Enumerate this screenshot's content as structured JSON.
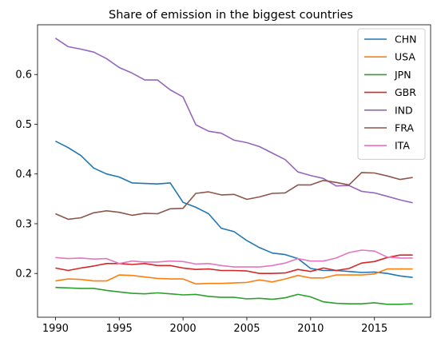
{
  "chart_data": {
    "type": "line",
    "title": "Share of emission in the biggest countries",
    "xlabel": "",
    "ylabel": "",
    "xlim": [
      1988.6,
      2019.4
    ],
    "ylim": [
      0.112,
      0.7
    ],
    "xticks": [
      1990,
      1995,
      2000,
      2005,
      2010,
      2015
    ],
    "yticks": [
      0.2,
      0.3,
      0.4,
      0.5,
      0.6
    ],
    "grid": false,
    "legend_position": "top-right",
    "x": [
      1990,
      1991,
      1992,
      1993,
      1994,
      1995,
      1996,
      1997,
      1998,
      1999,
      2000,
      2001,
      2002,
      2003,
      2004,
      2005,
      2006,
      2007,
      2008,
      2009,
      2010,
      2011,
      2012,
      2013,
      2014,
      2015,
      2016,
      2017,
      2018
    ],
    "series": [
      {
        "name": "CHN",
        "color": "#1f77b4",
        "values": [
          0.466,
          0.453,
          0.437,
          0.412,
          0.4,
          0.394,
          0.382,
          0.381,
          0.38,
          0.382,
          0.343,
          0.333,
          0.32,
          0.291,
          0.284,
          0.266,
          0.252,
          0.241,
          0.238,
          0.23,
          0.21,
          0.206,
          0.206,
          0.204,
          0.202,
          0.203,
          0.2,
          0.195,
          0.192
        ]
      },
      {
        "name": "USA",
        "color": "#ff7f0e",
        "values": [
          0.185,
          0.189,
          0.188,
          0.185,
          0.185,
          0.197,
          0.196,
          0.193,
          0.19,
          0.189,
          0.189,
          0.179,
          0.18,
          0.18,
          0.181,
          0.182,
          0.187,
          0.183,
          0.189,
          0.196,
          0.191,
          0.191,
          0.197,
          0.197,
          0.197,
          0.199,
          0.209,
          0.209,
          0.209
        ]
      },
      {
        "name": "JPN",
        "color": "#2ca02c",
        "values": [
          0.172,
          0.171,
          0.17,
          0.17,
          0.166,
          0.163,
          0.16,
          0.159,
          0.161,
          0.159,
          0.157,
          0.158,
          0.154,
          0.152,
          0.152,
          0.149,
          0.15,
          0.148,
          0.151,
          0.158,
          0.153,
          0.143,
          0.14,
          0.139,
          0.139,
          0.141,
          0.138,
          0.138,
          0.139
        ]
      },
      {
        "name": "GBR",
        "color": "#d62728",
        "values": [
          0.211,
          0.206,
          0.211,
          0.215,
          0.22,
          0.22,
          0.218,
          0.22,
          0.216,
          0.216,
          0.211,
          0.208,
          0.209,
          0.206,
          0.206,
          0.205,
          0.2,
          0.2,
          0.201,
          0.208,
          0.204,
          0.211,
          0.206,
          0.21,
          0.221,
          0.224,
          0.232,
          0.237,
          0.237
        ]
      },
      {
        "name": "IND",
        "color": "#9467bd",
        "values": [
          0.673,
          0.656,
          0.651,
          0.645,
          0.632,
          0.614,
          0.603,
          0.589,
          0.589,
          0.569,
          0.555,
          0.499,
          0.486,
          0.482,
          0.468,
          0.463,
          0.455,
          0.442,
          0.429,
          0.404,
          0.397,
          0.391,
          0.376,
          0.377,
          0.365,
          0.362,
          0.355,
          0.348,
          0.342
        ]
      },
      {
        "name": "FRA",
        "color": "#8c564b",
        "values": [
          0.32,
          0.309,
          0.312,
          0.322,
          0.326,
          0.323,
          0.317,
          0.321,
          0.32,
          0.33,
          0.331,
          0.361,
          0.364,
          0.358,
          0.359,
          0.349,
          0.354,
          0.361,
          0.362,
          0.378,
          0.378,
          0.387,
          0.383,
          0.378,
          0.403,
          0.402,
          0.396,
          0.389,
          0.393
        ]
      },
      {
        "name": "ITA",
        "color": "#e377c2",
        "values": [
          0.232,
          0.23,
          0.231,
          0.229,
          0.23,
          0.22,
          0.225,
          0.223,
          0.223,
          0.225,
          0.224,
          0.219,
          0.22,
          0.216,
          0.213,
          0.213,
          0.213,
          0.216,
          0.221,
          0.23,
          0.225,
          0.225,
          0.231,
          0.242,
          0.247,
          0.245,
          0.233,
          0.231,
          0.231
        ]
      }
    ]
  }
}
